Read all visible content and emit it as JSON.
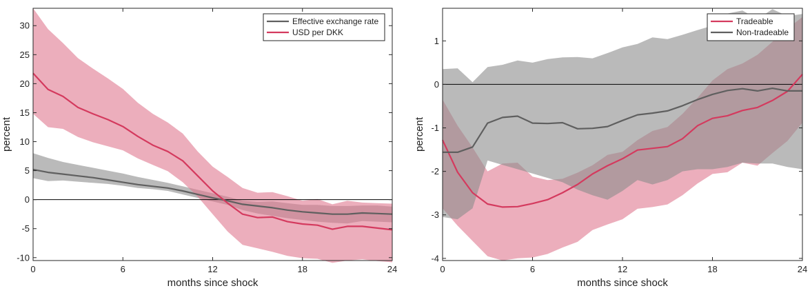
{
  "chart_data": [
    {
      "type": "line",
      "xlabel": "months since shock",
      "ylabel": "percent",
      "xlim": [
        0,
        24
      ],
      "ylim": [
        -10.5,
        33
      ],
      "xticks": [
        "0",
        "6",
        "12",
        "18",
        "24"
      ],
      "yticks": [
        "-10",
        "-5",
        "0",
        "5",
        "10",
        "15",
        "20",
        "25",
        "30"
      ],
      "legend_position": "top-right",
      "grid": false,
      "x": [
        0,
        1,
        2,
        3,
        4,
        5,
        6,
        7,
        8,
        9,
        10,
        11,
        12,
        13,
        14,
        15,
        16,
        17,
        18,
        19,
        20,
        21,
        22,
        23,
        24
      ],
      "series": [
        {
          "name": "Effective exchange rate",
          "color": "#5f5f5f",
          "band_color": "#8c8c8c",
          "values": [
            5.2,
            4.7,
            4.4,
            4.1,
            3.8,
            3.4,
            3.0,
            2.6,
            2.3,
            2.0,
            1.5,
            0.9,
            0.3,
            -0.2,
            -0.8,
            -1.1,
            -1.4,
            -1.8,
            -2.1,
            -2.3,
            -2.5,
            -2.5,
            -2.3,
            -2.4,
            -2.5
          ],
          "lower": [
            3.7,
            3.2,
            3.3,
            3.1,
            2.9,
            2.7,
            2.4,
            2.0,
            1.8,
            1.5,
            0.9,
            0.3,
            -0.3,
            -0.9,
            -1.8,
            -2.4,
            -2.8,
            -3.2,
            -3.5,
            -3.8,
            -4.0,
            -4.1,
            -3.7,
            -3.8,
            -3.9
          ],
          "upper": [
            8.0,
            7.2,
            6.5,
            6.0,
            5.5,
            5.0,
            4.5,
            3.9,
            3.4,
            2.9,
            2.3,
            1.7,
            1.1,
            0.5,
            -0.2,
            -0.4,
            -0.3,
            -0.6,
            -0.9,
            -0.9,
            -1.1,
            -1.1,
            -1.0,
            -1.0,
            -1.2
          ]
        },
        {
          "name": "USD per DKK",
          "color": "#d43a5e",
          "band_color": "#e07890",
          "values": [
            21.8,
            19.0,
            17.8,
            15.9,
            14.8,
            13.8,
            12.6,
            10.9,
            9.4,
            8.3,
            6.7,
            4.1,
            1.5,
            -0.6,
            -2.5,
            -3.1,
            -3.0,
            -3.8,
            -4.2,
            -4.4,
            -5.1,
            -4.6,
            -4.6,
            -4.9,
            -5.2
          ],
          "lower": [
            14.8,
            12.5,
            12.2,
            10.8,
            9.9,
            9.2,
            8.5,
            7.1,
            6.0,
            4.9,
            3.0,
            0.5,
            -2.5,
            -5.5,
            -7.8,
            -8.4,
            -9.0,
            -9.7,
            -10.1,
            -10.2,
            -10.9,
            -10.5,
            -10.3,
            -10.6,
            -10.8
          ],
          "upper": [
            33.0,
            29.4,
            27.0,
            24.4,
            22.6,
            20.9,
            19.1,
            16.7,
            14.8,
            13.3,
            11.4,
            8.3,
            5.7,
            3.9,
            2.0,
            1.2,
            1.3,
            0.6,
            -0.2,
            0.1,
            -0.8,
            -0.2,
            -0.5,
            -0.6,
            -0.7
          ]
        }
      ]
    },
    {
      "type": "line",
      "xlabel": "months since shock",
      "ylabel": "percent",
      "xlim": [
        0,
        24
      ],
      "ylim": [
        -4.05,
        1.75
      ],
      "xticks": [
        "0",
        "6",
        "12",
        "18",
        "24"
      ],
      "yticks": [
        "-4",
        "-3",
        "-2",
        "-1",
        "0",
        "1"
      ],
      "legend_position": "top-right",
      "grid": false,
      "x": [
        0,
        1,
        2,
        3,
        4,
        5,
        6,
        7,
        8,
        9,
        10,
        11,
        12,
        13,
        14,
        15,
        16,
        17,
        18,
        19,
        20,
        21,
        22,
        23,
        24
      ],
      "series": [
        {
          "name": "Tradeable",
          "color": "#d43a5e",
          "band_color": "#e07890",
          "values": [
            -1.28,
            -2.02,
            -2.49,
            -2.75,
            -2.82,
            -2.81,
            -2.74,
            -2.65,
            -2.49,
            -2.3,
            -2.06,
            -1.87,
            -1.71,
            -1.51,
            -1.47,
            -1.43,
            -1.25,
            -0.95,
            -0.78,
            -0.72,
            -0.6,
            -0.53,
            -0.37,
            -0.16,
            0.23
          ],
          "lower": [
            -2.85,
            -3.25,
            -3.6,
            -3.95,
            -4.05,
            -4.0,
            -3.98,
            -3.9,
            -3.75,
            -3.62,
            -3.35,
            -3.22,
            -3.1,
            -2.86,
            -2.82,
            -2.76,
            -2.55,
            -2.28,
            -2.06,
            -2.02,
            -1.8,
            -1.87,
            -1.58,
            -1.3,
            -0.88
          ],
          "upper": [
            -0.35,
            -0.95,
            -1.45,
            -2.0,
            -1.82,
            -1.8,
            -2.12,
            -2.2,
            -2.17,
            -2.03,
            -1.86,
            -1.62,
            -1.55,
            -1.28,
            -1.07,
            -0.98,
            -0.68,
            -0.31,
            0.09,
            0.35,
            0.48,
            0.68,
            0.98,
            1.28,
            1.55
          ]
        },
        {
          "name": "Non-tradeable",
          "color": "#5f5f5f",
          "band_color": "#8c8c8c",
          "values": [
            -1.56,
            -1.56,
            -1.44,
            -0.89,
            -0.76,
            -0.73,
            -0.89,
            -0.9,
            -0.88,
            -1.02,
            -1.01,
            -0.97,
            -0.83,
            -0.7,
            -0.66,
            -0.61,
            -0.49,
            -0.35,
            -0.23,
            -0.14,
            -0.1,
            -0.15,
            -0.09,
            -0.15,
            -0.15
          ],
          "lower": [
            -3.05,
            -3.1,
            -2.85,
            -1.75,
            -1.85,
            -1.95,
            -2.05,
            -2.15,
            -2.25,
            -2.42,
            -2.55,
            -2.65,
            -2.45,
            -2.2,
            -2.3,
            -2.2,
            -2.0,
            -1.95,
            -1.95,
            -1.9,
            -1.8,
            -1.82,
            -1.82,
            -1.9,
            -1.95
          ],
          "upper": [
            0.35,
            0.37,
            0.05,
            0.4,
            0.45,
            0.55,
            0.5,
            0.58,
            0.62,
            0.63,
            0.6,
            0.72,
            0.85,
            0.93,
            1.08,
            1.04,
            1.14,
            1.25,
            1.35,
            1.63,
            1.7,
            1.5,
            1.73,
            1.57,
            1.62
          ]
        }
      ]
    }
  ]
}
